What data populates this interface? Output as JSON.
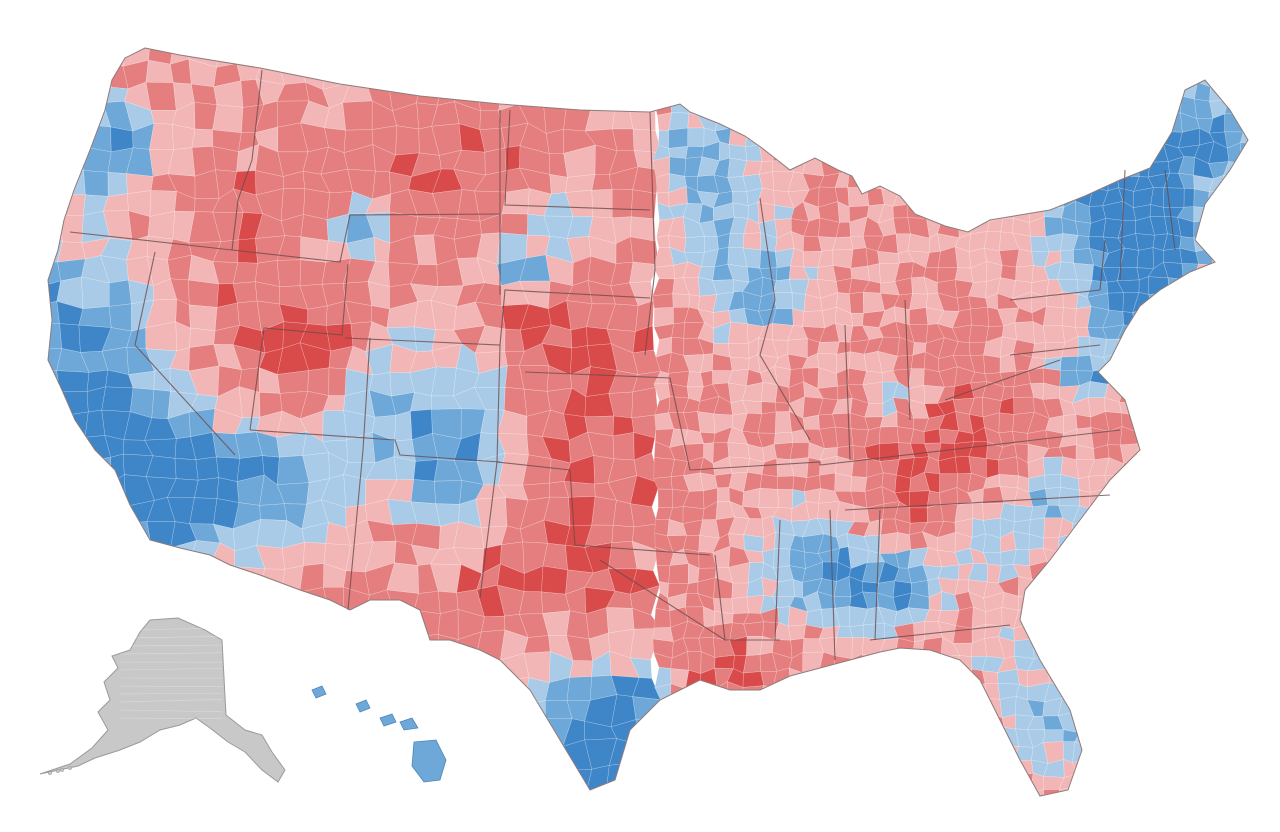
{
  "palette": {
    "rep_strong": "#d94b4b",
    "rep_mid": "#e57f7f",
    "rep_light": "#f2b6b6",
    "dem_light": "#a9cbe8",
    "dem_mid": "#6ea8d8",
    "dem_strong": "#3f86c9",
    "alaska_fill": "#c8c8c8",
    "alaska_stroke": "#9a9a9a",
    "background": "#ffffff"
  }
}
